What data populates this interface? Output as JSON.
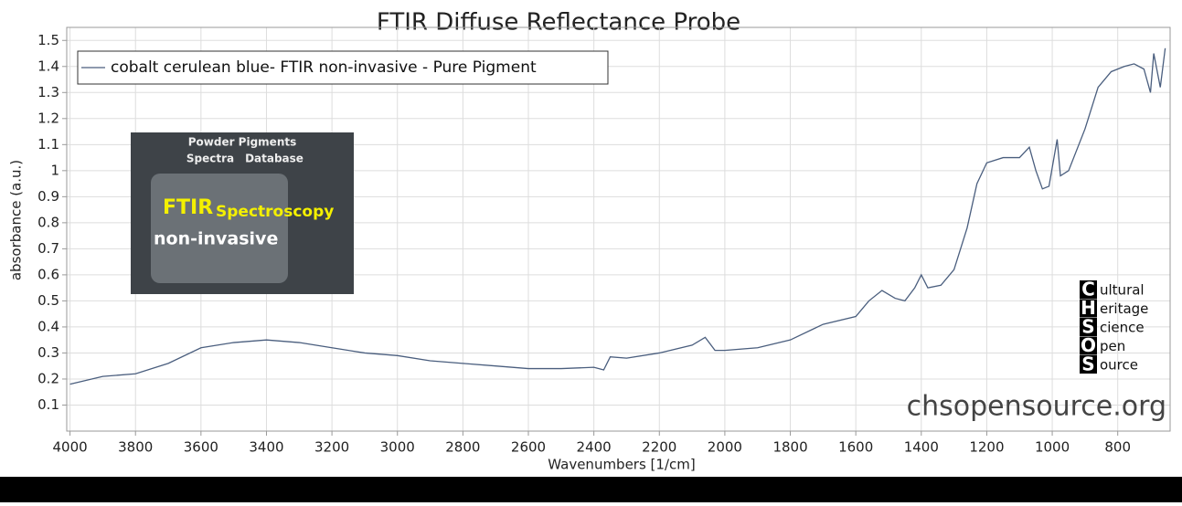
{
  "chart_data": {
    "type": "line",
    "title": "FTIR Diffuse Reflectance Probe",
    "x_label": "Wavenumbers [1/cm]",
    "y_label": "absorbance (a.u.)",
    "xlim": [
      4010,
      640
    ],
    "ylim": [
      0,
      1.55
    ],
    "xticks": [
      4000,
      3800,
      3600,
      3400,
      3200,
      3000,
      2800,
      2600,
      2400,
      2200,
      2000,
      1800,
      1600,
      1400,
      1200,
      1000,
      800
    ],
    "yticks": [
      0.1,
      0.2,
      0.3,
      0.4,
      0.5,
      0.6,
      0.7,
      0.8,
      0.9,
      1,
      1.1,
      1.2,
      1.3,
      1.4,
      1.5
    ],
    "grid": true,
    "legend": "upper left",
    "x": [
      4000,
      3900,
      3800,
      3700,
      3600,
      3500,
      3400,
      3300,
      3200,
      3100,
      3000,
      2900,
      2800,
      2700,
      2600,
      2500,
      2400,
      2370,
      2350,
      2300,
      2200,
      2100,
      2060,
      2030,
      2000,
      1900,
      1800,
      1700,
      1600,
      1560,
      1520,
      1480,
      1450,
      1420,
      1400,
      1380,
      1340,
      1300,
      1260,
      1230,
      1200,
      1150,
      1100,
      1070,
      1050,
      1030,
      1010,
      985,
      975,
      950,
      900,
      860,
      820,
      780,
      750,
      720,
      700,
      690,
      670,
      655
    ],
    "series": [
      {
        "name": "cobalt cerulean blue- FTIR non-invasive - Pure Pigment",
        "color": "#4a5e7e",
        "values": [
          0.18,
          0.21,
          0.22,
          0.26,
          0.32,
          0.34,
          0.35,
          0.34,
          0.32,
          0.3,
          0.29,
          0.27,
          0.26,
          0.25,
          0.24,
          0.24,
          0.245,
          0.235,
          0.285,
          0.28,
          0.3,
          0.33,
          0.36,
          0.31,
          0.31,
          0.32,
          0.35,
          0.41,
          0.44,
          0.5,
          0.54,
          0.51,
          0.5,
          0.55,
          0.6,
          0.55,
          0.56,
          0.62,
          0.78,
          0.95,
          1.03,
          1.05,
          1.05,
          1.09,
          1.0,
          0.93,
          0.94,
          1.12,
          0.98,
          1.0,
          1.16,
          1.32,
          1.38,
          1.4,
          1.41,
          1.39,
          1.3,
          1.45,
          1.32,
          1.47
        ]
      }
    ],
    "annotations": [
      "chsopensource.org"
    ],
    "inset_texts": [
      "Powder Pigments",
      "Spectra",
      "Database",
      "FTIR",
      "Spectroscopy",
      "non-invasive"
    ],
    "logo": {
      "letters": [
        "C",
        "H",
        "S",
        "O",
        "S"
      ],
      "words": [
        "ultural",
        "eritage",
        "cience",
        "pen",
        "ource"
      ]
    }
  }
}
